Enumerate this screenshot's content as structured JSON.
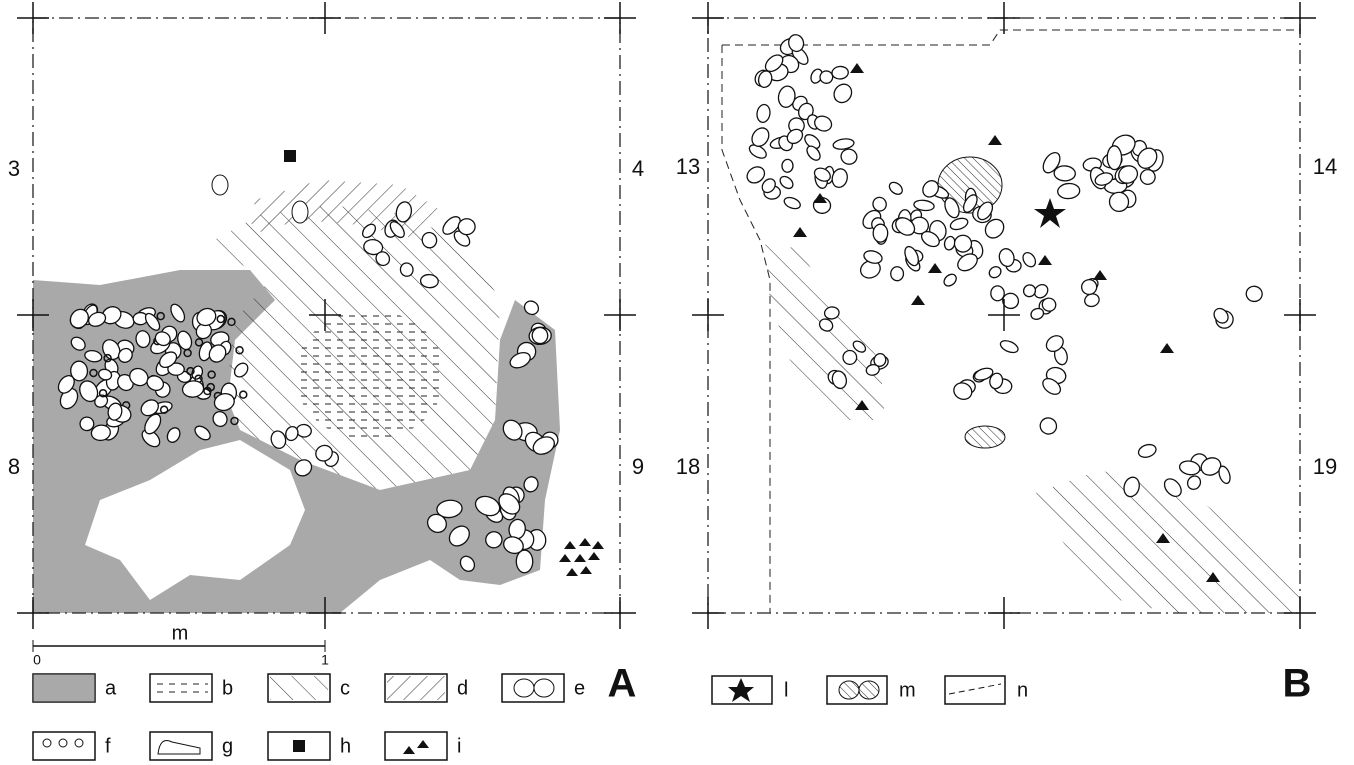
{
  "panels": [
    {
      "label": "A",
      "grid_labels": [
        "3",
        "4",
        "8",
        "9"
      ],
      "scale": {
        "unit": "m",
        "ticks": [
          "0",
          "1"
        ]
      },
      "legend": [
        "a",
        "b",
        "c",
        "d",
        "e",
        "f",
        "g",
        "h",
        "i"
      ]
    },
    {
      "label": "B",
      "grid_labels": [
        "13",
        "14",
        "18",
        "19"
      ],
      "legend": [
        "l",
        "m",
        "n"
      ]
    }
  ]
}
